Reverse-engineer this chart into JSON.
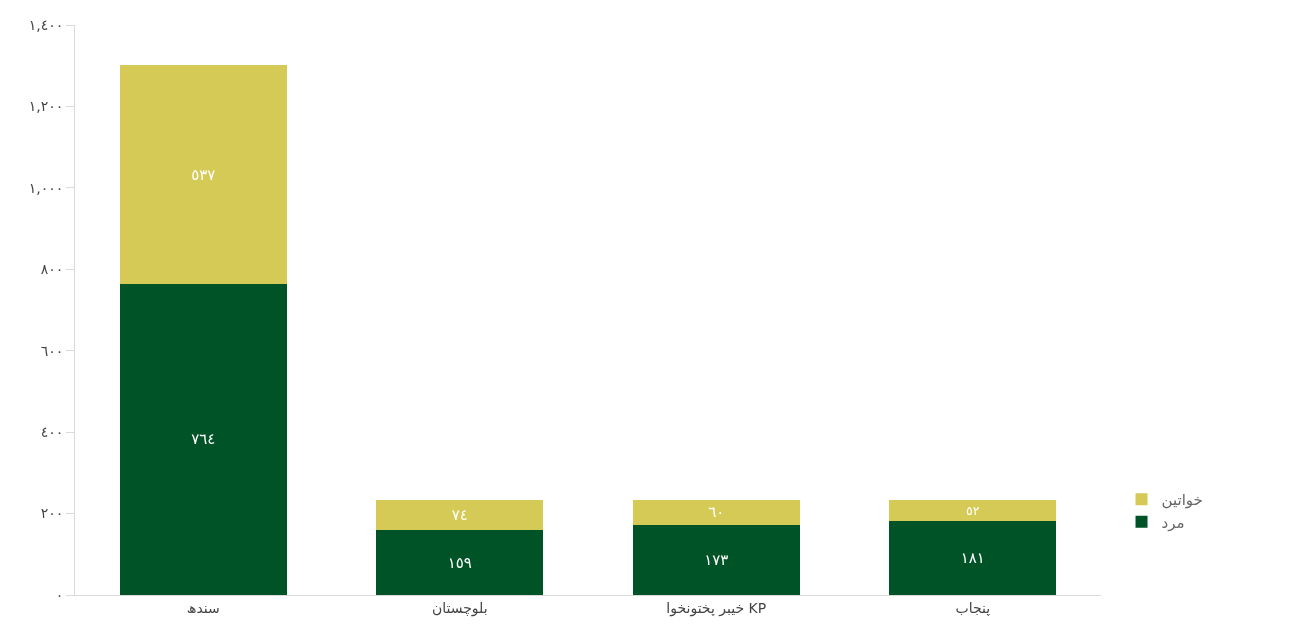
{
  "chart_data": {
    "type": "bar",
    "stacked": true,
    "categories": [
      "سندھ",
      "بلوچستان",
      "خیبر پختونخوا KP",
      "پنجاب"
    ],
    "series": [
      {
        "name": "مرد",
        "color": "#005227",
        "values": [
          764,
          159,
          173,
          181
        ],
        "value_labels": [
          "٧٦٤",
          "١٥٩",
          "١٧٣",
          "١٨١"
        ]
      },
      {
        "name": "خواتین",
        "color": "#d4ca55",
        "values": [
          537,
          74,
          60,
          52
        ],
        "value_labels": [
          "٥٣٧",
          "٧٤",
          "٦٠",
          "٥٢"
        ]
      }
    ],
    "ylim": [
      0,
      1400
    ],
    "yticks": [
      {
        "value": 0,
        "label": "٠"
      },
      {
        "value": 200,
        "label": "٢٠٠"
      },
      {
        "value": 400,
        "label": "٤٠٠"
      },
      {
        "value": 600,
        "label": "٦٠٠"
      },
      {
        "value": 800,
        "label": "٨٠٠"
      },
      {
        "value": 1000,
        "label": "١,٠٠٠"
      },
      {
        "value": 1200,
        "label": "١,٢٠٠"
      },
      {
        "value": 1400,
        "label": "١,٤٠٠"
      }
    ],
    "legend": "right"
  }
}
